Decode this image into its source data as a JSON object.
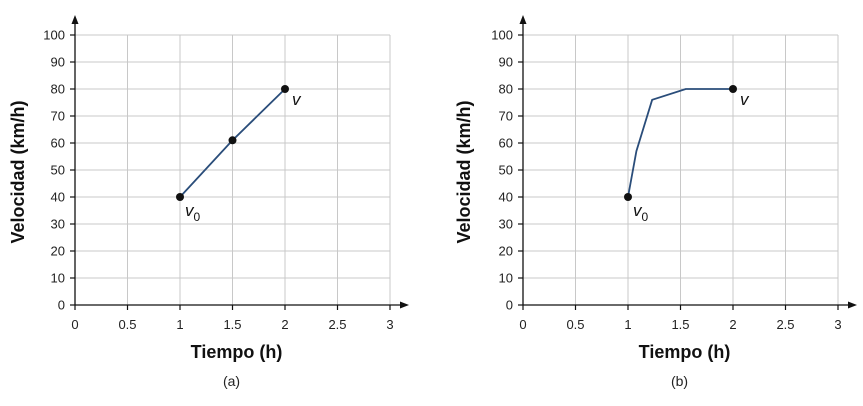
{
  "colors": {
    "line": "#2a4d7a",
    "grid": "#c8c8c8",
    "axis": "#111111",
    "point": "#111111"
  },
  "chart_data": [
    {
      "type": "line",
      "panel_label": "(a)",
      "xlabel": "Tiempo (h)",
      "ylabel": "Velocidad (km/h)",
      "xlim": [
        0,
        3
      ],
      "ylim": [
        0,
        100
      ],
      "xticks": [
        "0",
        "0.5",
        "1",
        "1.5",
        "2",
        "2.5",
        "3"
      ],
      "yticks": [
        "0",
        "10",
        "20",
        "30",
        "40",
        "50",
        "60",
        "70",
        "80",
        "90",
        "100"
      ],
      "grid": true,
      "series": [
        {
          "x": [
            1,
            1.5,
            2
          ],
          "y": [
            40,
            61,
            80
          ]
        }
      ],
      "points": [
        {
          "x": 1,
          "y": 40,
          "label": "v",
          "sub": "0"
        },
        {
          "x": 1.5,
          "y": 61,
          "label": "",
          "sub": ""
        },
        {
          "x": 2,
          "y": 80,
          "label": "v",
          "sub": ""
        }
      ]
    },
    {
      "type": "line",
      "panel_label": "(b)",
      "xlabel": "Tiempo (h)",
      "ylabel": "Velocidad (km/h)",
      "xlim": [
        0,
        3
      ],
      "ylim": [
        0,
        100
      ],
      "xticks": [
        "0",
        "0.5",
        "1",
        "1.5",
        "2",
        "2.5",
        "3"
      ],
      "yticks": [
        "0",
        "10",
        "20",
        "30",
        "40",
        "50",
        "60",
        "70",
        "80",
        "90",
        "100"
      ],
      "grid": true,
      "series": [
        {
          "x": [
            1,
            1.08,
            1.23,
            1.55,
            2
          ],
          "y": [
            40,
            57,
            76,
            80,
            80
          ]
        }
      ],
      "points": [
        {
          "x": 1,
          "y": 40,
          "label": "v",
          "sub": "0"
        },
        {
          "x": 2,
          "y": 80,
          "label": "v",
          "sub": ""
        }
      ]
    }
  ]
}
